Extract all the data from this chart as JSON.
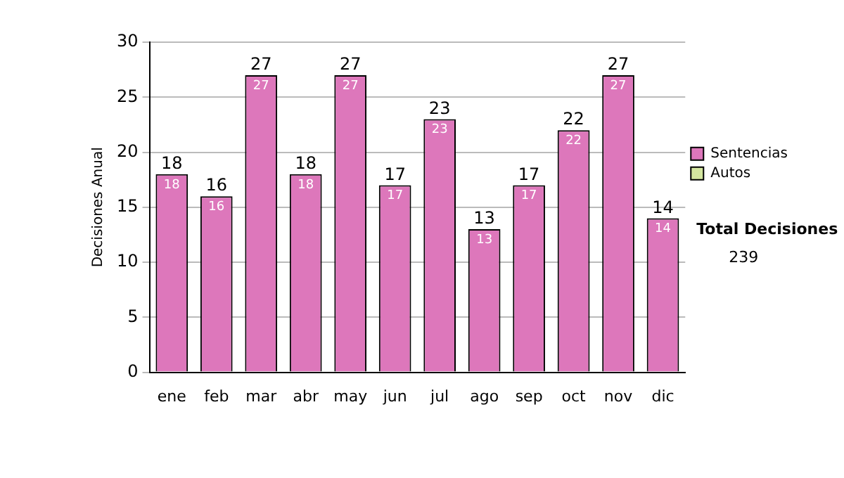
{
  "chart_data": {
    "type": "bar",
    "stacked": true,
    "categories": [
      "ene",
      "feb",
      "mar",
      "abr",
      "may",
      "jun",
      "jul",
      "ago",
      "sep",
      "oct",
      "nov",
      "dic"
    ],
    "series": [
      {
        "name": "Sentencias",
        "color": "#dd77bb",
        "values": [
          18,
          16,
          27,
          18,
          27,
          17,
          23,
          13,
          17,
          22,
          27,
          14
        ],
        "value_labels": [
          "18",
          "16",
          "27",
          "18",
          "27",
          "17",
          "23",
          "13",
          "17",
          "22",
          "27",
          "14"
        ]
      },
      {
        "name": "Autos",
        "color": "#d4e6a0",
        "values": [
          0,
          0,
          0,
          0,
          0,
          0,
          0,
          0,
          0,
          0,
          0,
          0
        ]
      }
    ],
    "totals": [
      "18",
      "16",
      "27",
      "18",
      "27",
      "17",
      "23",
      "13",
      "17",
      "22",
      "27",
      "14"
    ],
    "ylabel": "Decisiones Anual",
    "ylim": [
      0,
      30
    ],
    "yticks": [
      0,
      5,
      10,
      15,
      20,
      25,
      30
    ],
    "grid": "y",
    "legend": "right",
    "annotations": [
      "Total Decisiones",
      "239"
    ]
  }
}
